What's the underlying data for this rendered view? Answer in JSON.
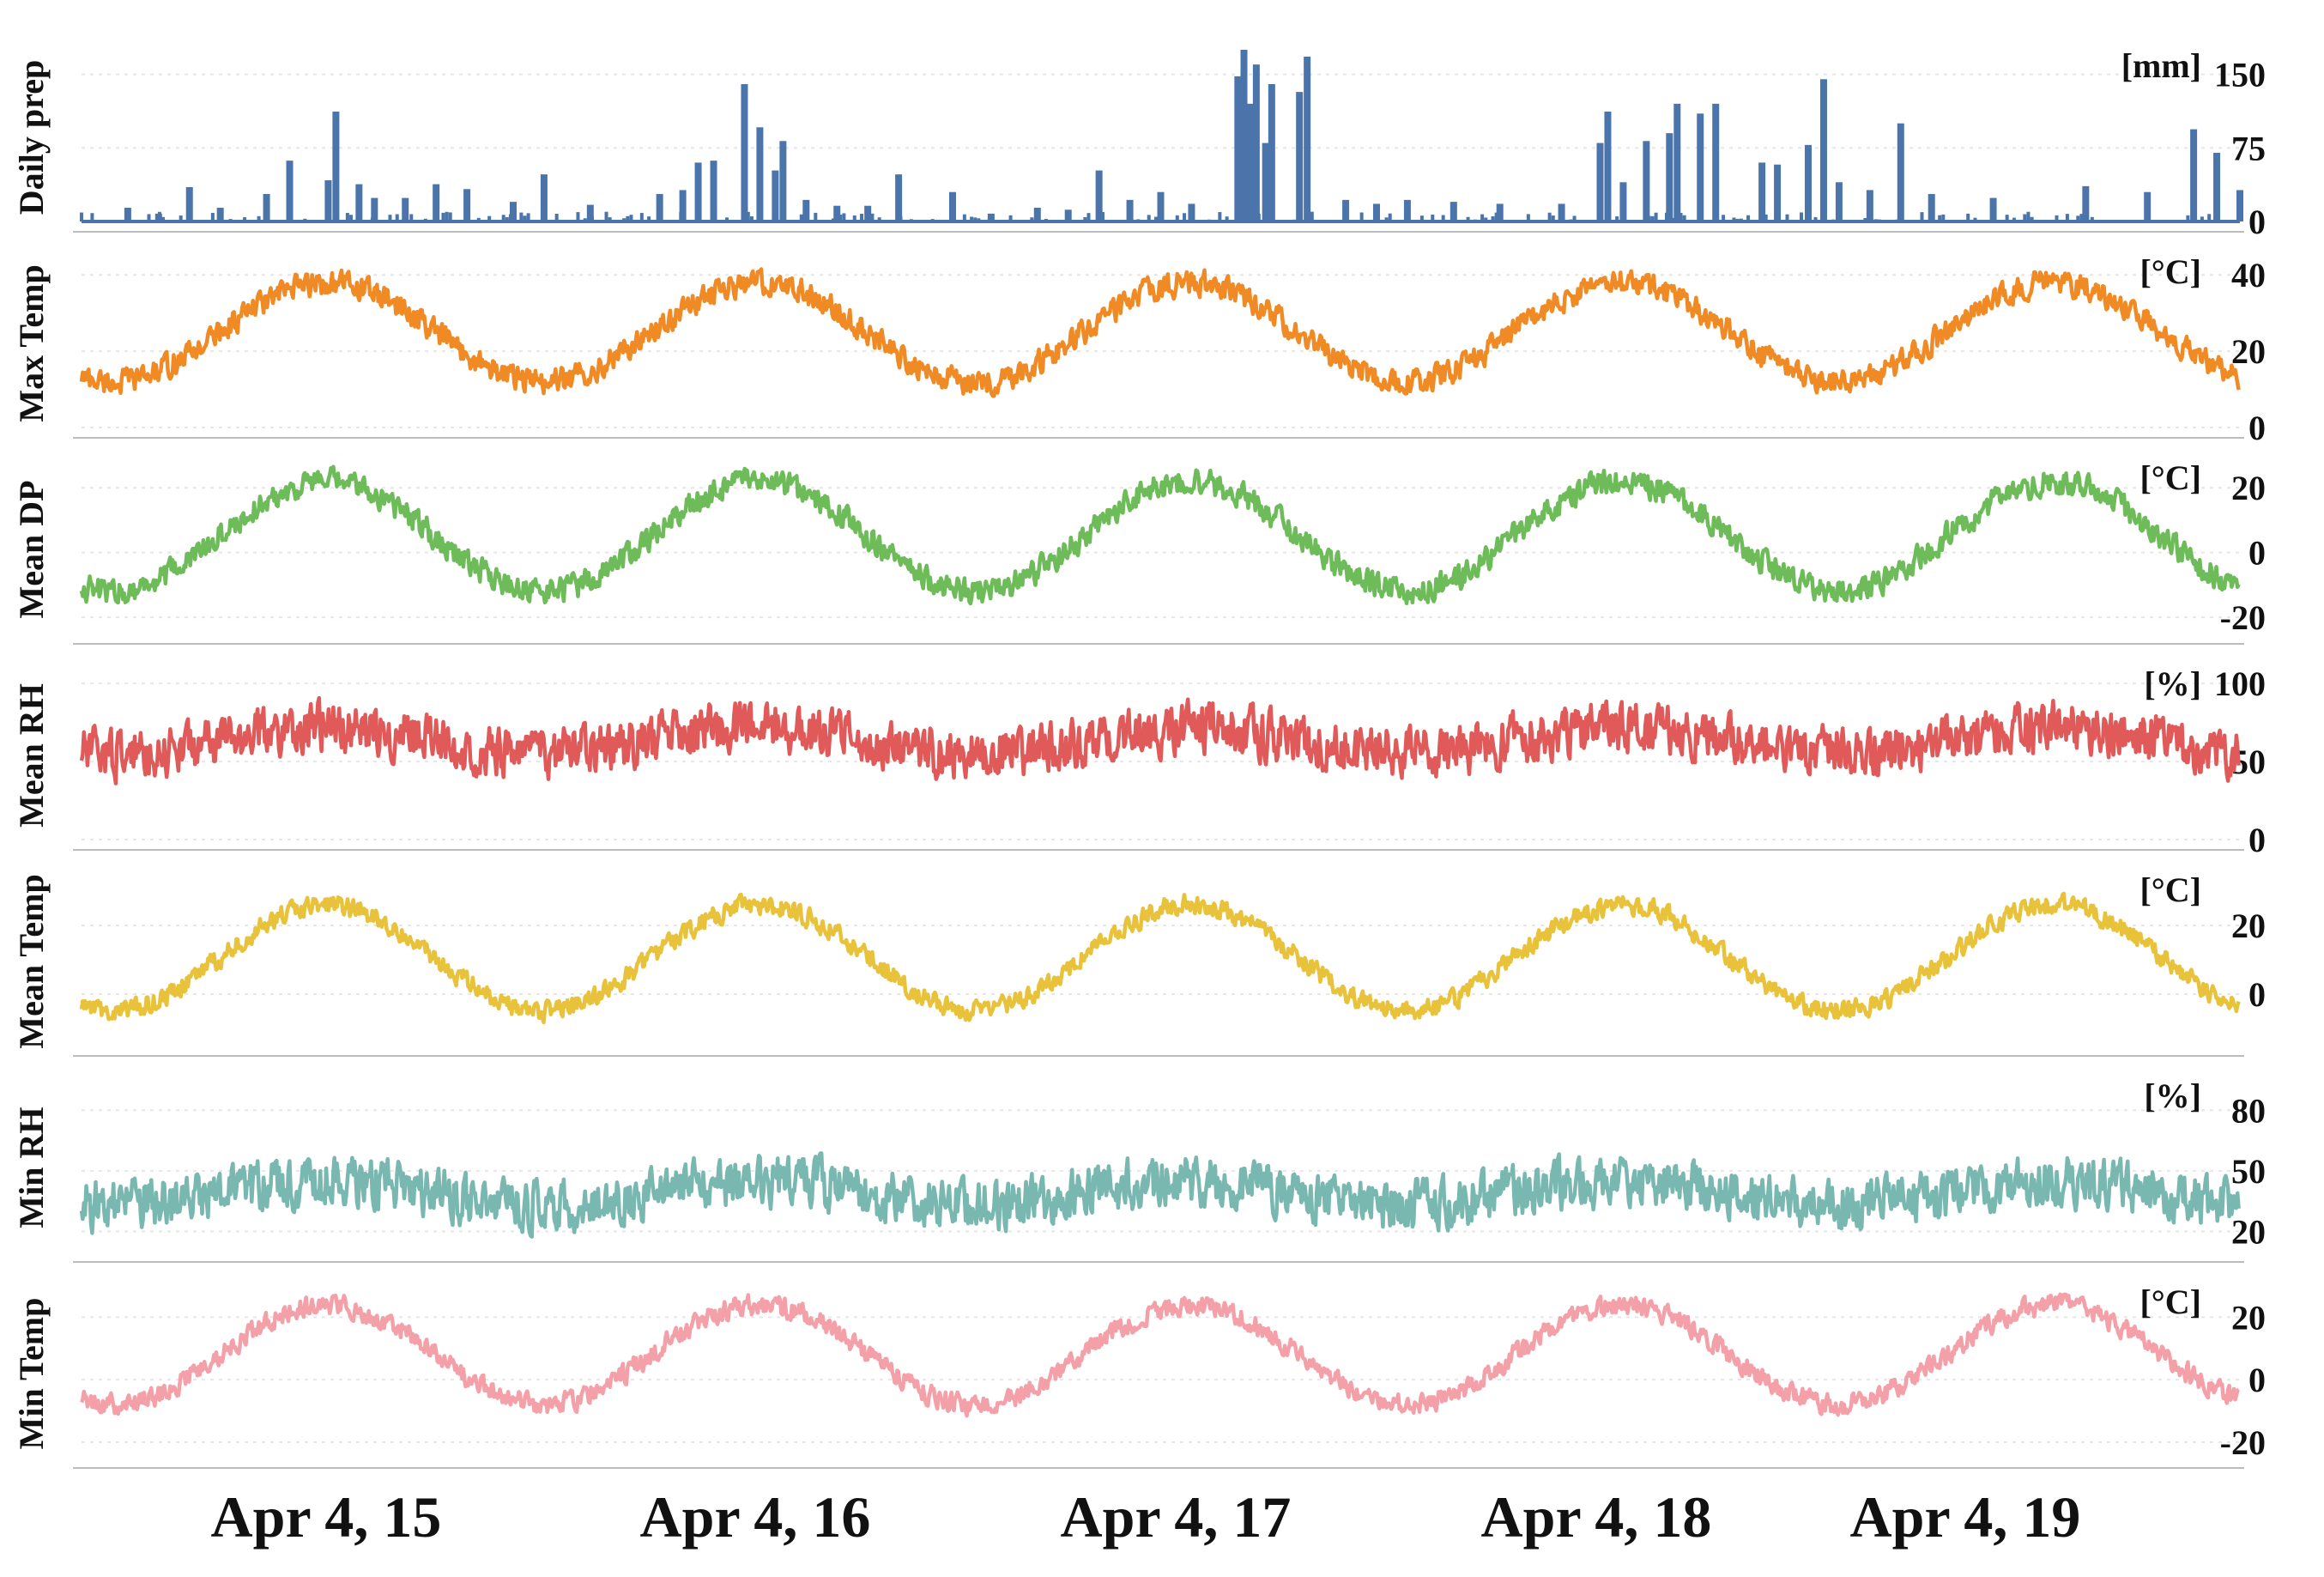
{
  "chart_data": {
    "type": "line",
    "layout": "stacked-panels",
    "x_labels": [
      "Apr 4, 15",
      "Apr 4, 16",
      "Apr 4, 17",
      "Apr 4, 18",
      "Apr 4, 19"
    ],
    "x_range": [
      "2015-01-01",
      "2019-12-31"
    ],
    "panels": [
      {
        "id": "daily-prep",
        "label": "Daily prep",
        "unit": "[mm]",
        "kind": "bar",
        "color": "#4a74aa",
        "yticks": [
          0,
          75,
          150
        ],
        "ylim": [
          0,
          175
        ],
        "events": [
          [
            0.03,
            14
          ],
          [
            0.05,
            8
          ],
          [
            0.07,
            35
          ],
          [
            0.09,
            14
          ],
          [
            0.12,
            28
          ],
          [
            0.135,
            62
          ],
          [
            0.16,
            42
          ],
          [
            0.165,
            112
          ],
          [
            0.18,
            38
          ],
          [
            0.19,
            24
          ],
          [
            0.21,
            24
          ],
          [
            0.23,
            38
          ],
          [
            0.25,
            33
          ],
          [
            0.28,
            20
          ],
          [
            0.3,
            48
          ],
          [
            0.33,
            17
          ],
          [
            0.375,
            28
          ],
          [
            0.39,
            32
          ],
          [
            0.4,
            60
          ],
          [
            0.41,
            62
          ],
          [
            0.43,
            140
          ],
          [
            0.44,
            96
          ],
          [
            0.45,
            52
          ],
          [
            0.455,
            82
          ],
          [
            0.47,
            22
          ],
          [
            0.49,
            16
          ],
          [
            0.51,
            16
          ],
          [
            0.53,
            48
          ],
          [
            0.565,
            30
          ],
          [
            0.59,
            8
          ],
          [
            0.62,
            14
          ],
          [
            0.64,
            12
          ],
          [
            0.66,
            52
          ],
          [
            0.68,
            22
          ],
          [
            0.7,
            30
          ],
          [
            0.72,
            18
          ],
          [
            0.75,
            148
          ],
          [
            0.754,
            175
          ],
          [
            0.758,
            120
          ],
          [
            0.762,
            160
          ],
          [
            0.768,
            80
          ],
          [
            0.772,
            140
          ],
          [
            0.79,
            132
          ],
          [
            0.795,
            168
          ],
          [
            0.82,
            22
          ],
          [
            0.84,
            18
          ],
          [
            0.86,
            22
          ],
          [
            0.89,
            20
          ],
          [
            0.92,
            18
          ],
          [
            0.96,
            18
          ],
          [
            0.985,
            80
          ],
          [
            0.99,
            112
          ],
          [
            1.0,
            40
          ],
          [
            1.015,
            82
          ],
          [
            1.03,
            90
          ],
          [
            1.035,
            120
          ],
          [
            1.05,
            110
          ],
          [
            1.06,
            120
          ],
          [
            1.09,
            60
          ],
          [
            1.1,
            58
          ],
          [
            1.12,
            78
          ],
          [
            1.13,
            145
          ],
          [
            1.14,
            40
          ],
          [
            1.16,
            32
          ],
          [
            1.18,
            100
          ],
          [
            1.2,
            28
          ],
          [
            1.24,
            24
          ],
          [
            1.3,
            36
          ],
          [
            1.34,
            30
          ],
          [
            1.37,
            94
          ],
          [
            1.385,
            70
          ],
          [
            1.4,
            32
          ]
        ]
      },
      {
        "id": "max-temp",
        "label": "Max Temp",
        "unit": "[°C]",
        "kind": "line",
        "color": "#f08a24",
        "yticks": [
          0,
          20,
          40
        ],
        "ylim": [
          0,
          45
        ],
        "min_value": 12,
        "max_value": 38,
        "noise": 4.5
      },
      {
        "id": "mean-dp",
        "label": "Mean DP",
        "unit": "[°C]",
        "kind": "line",
        "color": "#6ebb5a",
        "yticks": [
          -20,
          0,
          20
        ],
        "ylim": [
          -25,
          28
        ],
        "min_value": -12,
        "max_value": 22,
        "noise": 5.5
      },
      {
        "id": "mean-rh",
        "label": "Mean RH",
        "unit": "[%]",
        "kind": "line",
        "color": "#e05a5a",
        "yticks": [
          0,
          50,
          100
        ],
        "ylim": [
          0,
          110
        ],
        "min_value": 55,
        "max_value": 72,
        "noise": 22
      },
      {
        "id": "mean-temp",
        "label": "Mean Temp",
        "unit": "[°C]",
        "kind": "line",
        "color": "#e8c23a",
        "yticks": [
          0,
          20
        ],
        "ylim": [
          -15,
          35
        ],
        "min_value": -5,
        "max_value": 26,
        "noise": 4
      },
      {
        "id": "min-rh",
        "label": "Min RH",
        "unit": "[%]",
        "kind": "line",
        "color": "#78b8b0",
        "yticks": [
          20,
          50,
          80
        ],
        "ylim": [
          10,
          95
        ],
        "min_value": 33,
        "max_value": 45,
        "noise": 17
      },
      {
        "id": "min-temp",
        "label": "Min Temp",
        "unit": "[°C]",
        "kind": "line",
        "color": "#f4a0a8",
        "yticks": [
          -20,
          0,
          20
        ],
        "ylim": [
          -25,
          30
        ],
        "min_value": -8,
        "max_value": 24,
        "noise": 4.5
      }
    ]
  }
}
